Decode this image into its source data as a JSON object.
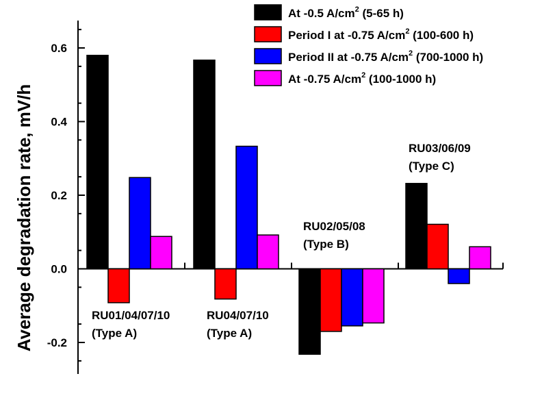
{
  "chart_data": {
    "type": "bar",
    "title": "",
    "xlabel": "",
    "ylabel": "Average degradation rate, mV/h",
    "ylim": [
      -0.29,
      0.65
    ],
    "yticks": [
      -0.2,
      0.0,
      0.2,
      0.4,
      0.6
    ],
    "ytick_labels": [
      "-0.2",
      "0.0",
      "0.2",
      "0.4",
      "0.6"
    ],
    "grid": false,
    "legend_position": "top-right",
    "categories": [
      "RU01/04/07/10 (Type A)",
      "RU04/07/10 (Type A)",
      "RU02/05/08 (Type B)",
      "RU03/06/09 (Type C)"
    ],
    "series": [
      {
        "name": "At -0.5 A/cm² (5-65 h)",
        "legend_main": "At -0.5 A/cm",
        "legend_sup": "2",
        "legend_tail": " (5-65 h)",
        "color": "#000000",
        "values": [
          0.58,
          0.567,
          -0.232,
          0.232
        ]
      },
      {
        "name": "Period I at -0.75 A/cm² (100-600 h)",
        "legend_main": "Period I at -0.75 A/cm",
        "legend_sup": "2",
        "legend_tail": " (100-600 h)",
        "color": "#ff0000",
        "values": [
          -0.092,
          -0.082,
          -0.17,
          0.121
        ]
      },
      {
        "name": "Period II at -0.75 A/cm² (700-1000 h)",
        "legend_main": "Period II at -0.75 A/cm",
        "legend_sup": "2",
        "legend_tail": " (700-1000 h)",
        "color": "#0000ff",
        "values": [
          0.248,
          0.333,
          -0.155,
          -0.04
        ]
      },
      {
        "name": "At -0.75 A/cm² (100-1000 h)",
        "legend_main": "At -0.75 A/cm",
        "legend_sup": "2",
        "legend_tail": " (100-1000 h)",
        "color": "#ff00ff",
        "values": [
          0.088,
          0.092,
          -0.147,
          0.06
        ]
      }
    ],
    "annotations": [
      {
        "lines": [
          "RU01/04/07/10",
          "(Type A)"
        ],
        "group": 0,
        "place": "below"
      },
      {
        "lines": [
          "RU04/07/10",
          "(Type A)"
        ],
        "group": 1,
        "place": "below"
      },
      {
        "lines": [
          "RU02/05/08",
          "(Type B)"
        ],
        "group": 2,
        "place": "above"
      },
      {
        "lines": [
          "RU03/06/09",
          "(Type C)"
        ],
        "group": 3,
        "place": "above"
      }
    ]
  }
}
